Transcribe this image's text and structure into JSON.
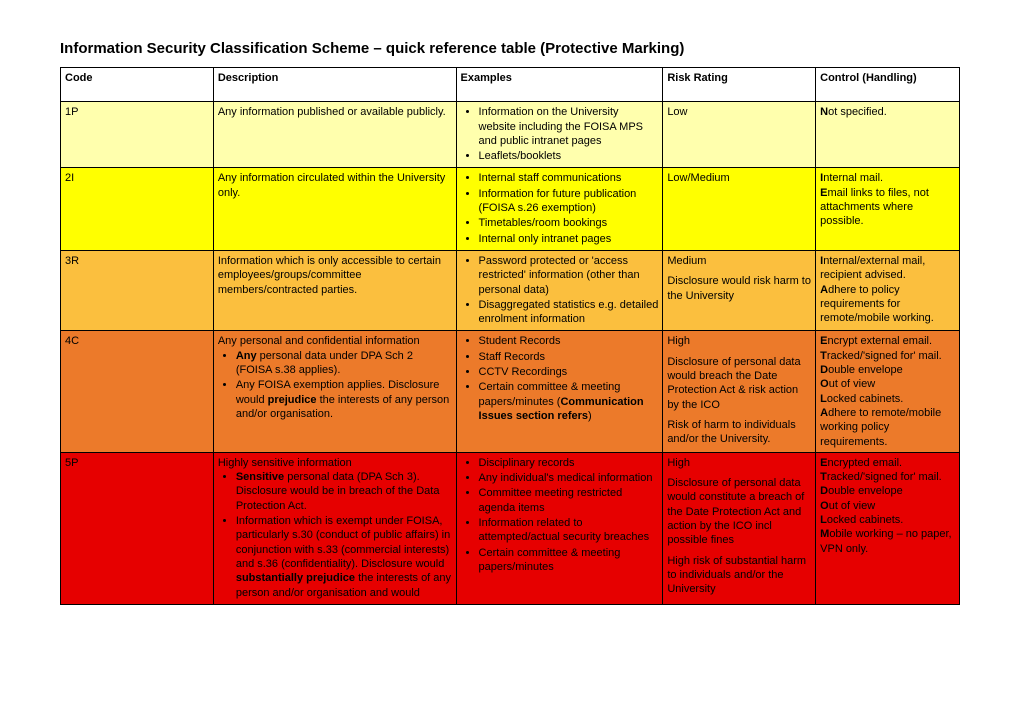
{
  "page": {
    "title": "Information Security Classification Scheme – quick reference table (Protective Marking)",
    "text_color": "#000000",
    "background_color": "#ffffff",
    "border_color": "#000000"
  },
  "columns": [
    {
      "label": "Code"
    },
    {
      "label": "Description"
    },
    {
      "label": "Examples"
    },
    {
      "label": "Risk Rating"
    },
    {
      "label": "Control (Handling)"
    }
  ],
  "row_colors": {
    "r1": "#ffffad",
    "r2": "#ffff00",
    "r3": "#fbbf3e",
    "r4": "#ec7a2a",
    "r5": "#e60000"
  },
  "rows": {
    "r1": {
      "code": "1P",
      "description": "Any information published or available publicly.",
      "examples": [
        "Information on the University website including the FOISA MPS and public intranet pages",
        "Leaflets/booklets"
      ],
      "risk_text": "Low",
      "control": [
        {
          "initial": "N",
          "rest": "ot specified."
        }
      ]
    },
    "r2": {
      "code": "2I",
      "description": "Any information circulated within the University only.",
      "examples": [
        "Internal staff communications",
        "Information for future publication (FOISA s.26 exemption)",
        "Timetables/room bookings",
        "Internal only intranet pages"
      ],
      "risk_text": "Low/Medium",
      "control": [
        {
          "initial": "I",
          "rest": "nternal mail."
        },
        {
          "initial": "E",
          "rest": "mail links to files, not attachments where possible."
        }
      ]
    },
    "r3": {
      "code": "3R",
      "description": "Information which is only accessible to certain employees/groups/committee members/contracted parties.",
      "examples": [
        "Password protected or 'access restricted' information (other than personal data)",
        "Disaggregated statistics e.g. detailed enrolment information"
      ],
      "risk_text": "Medium",
      "risk_detail": "Disclosure would risk harm to the University",
      "control": [
        {
          "initial": "I",
          "rest": "nternal/external mail, recipient advised."
        },
        {
          "initial": "A",
          "rest": "dhere to policy requirements for remote/mobile working."
        }
      ]
    },
    "r4": {
      "code": "4C",
      "desc_intro": "Any personal and confidential information",
      "desc_bul1_pre": "",
      "desc_bul1_bold": "Any",
      "desc_bul1_post": " personal data under DPA Sch 2 (FOISA s.38 applies).",
      "desc_bul2_pre": "Any FOISA exemption applies. Disclosure would ",
      "desc_bul2_bold": "prejudice",
      "desc_bul2_post": " the interests of any person and/or organisation.",
      "examples_plain": [
        "Student Records",
        "Staff Records",
        "CCTV Recordings"
      ],
      "example_comm_pre": "Certain committee & meeting papers/minutes (",
      "example_comm_bold": "Communication Issues section refers",
      "example_comm_post": ")",
      "risk_text": "High",
      "risk_detail1": "Disclosure of personal data would breach the Date Protection Act & risk action by the ICO",
      "risk_detail2": "Risk of harm to individuals and/or the University.",
      "control": [
        {
          "initial": "E",
          "rest": "ncrypt external email."
        },
        {
          "initial": "T",
          "rest": "racked/'signed for' mail."
        },
        {
          "initial": "D",
          "rest": "ouble envelope"
        },
        {
          "initial": "O",
          "rest": "ut of view"
        },
        {
          "initial": "L",
          "rest": "ocked cabinets."
        },
        {
          "initial": "A",
          "rest": "dhere to remote/mobile working policy requirements."
        }
      ]
    },
    "r5": {
      "code": "5P",
      "desc_intro": "Highly sensitive information",
      "desc_bul1_bold": "Sensitive",
      "desc_bul1_post": " personal data (DPA Sch 3). Disclosure would be in breach of the Data Protection Act.",
      "desc_bul2_pre": "Information which is exempt under FOISA, particularly s.30 (conduct of public affairs) in conjunction with s.33 (commercial interests) and s.36 (confidentiality). Disclosure would ",
      "desc_bul2_bold": "substantially prejudice",
      "desc_bul2_post": " the interests of any person and/or organisation and would",
      "examples": [
        "Disciplinary records",
        "Any individual's medical information",
        "Committee meeting restricted agenda items",
        "Information related to attempted/actual security breaches",
        "Certain committee & meeting papers/minutes"
      ],
      "risk_text": "High",
      "risk_detail1": "Disclosure of personal data would constitute a breach of the Date Protection Act and action by the ICO incl possible fines",
      "risk_detail2": "High risk of substantial harm to individuals and/or the University",
      "control": [
        {
          "initial": "E",
          "rest": "ncrypted email."
        },
        {
          "initial": "T",
          "rest": "racked/'signed for' mail."
        },
        {
          "initial": "D",
          "rest": "ouble envelope"
        },
        {
          "initial": "O",
          "rest": "ut of view"
        },
        {
          "initial": "L",
          "rest": "ocked cabinets."
        },
        {
          "initial": "M",
          "rest": "obile working – no paper, VPN only."
        }
      ]
    }
  }
}
